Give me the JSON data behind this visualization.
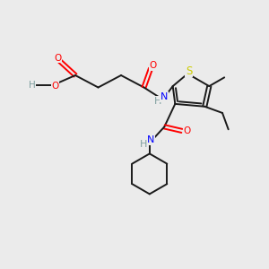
{
  "background_color": "#ebebeb",
  "bond_color": "#1a1a1a",
  "lw": 1.4,
  "figsize": [
    3.0,
    3.0
  ],
  "dpi": 100,
  "xlim": [
    0,
    10
  ],
  "ylim": [
    0,
    10
  ],
  "colors": {
    "O": "#ff0000",
    "N": "#0000ff",
    "S": "#cccc00",
    "C": "#1a1a1a",
    "H": "#7f9f9f"
  }
}
